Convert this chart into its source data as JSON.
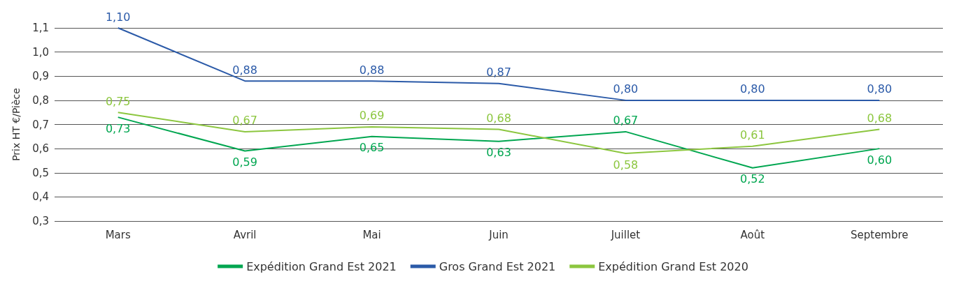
{
  "chart_data": {
    "type": "line",
    "ylabel": "Prix HT €/Pièce",
    "categories": [
      "Mars",
      "Avril",
      "Mai",
      "Juin",
      "Juillet",
      "Août",
      "Septembre"
    ],
    "series": [
      {
        "name": "Expédition Grand Est 2021",
        "color": "#00a650",
        "values": [
          0.73,
          0.59,
          0.65,
          0.63,
          0.67,
          0.52,
          0.6
        ],
        "value_labels": [
          "0,73",
          "0,59",
          "0,65",
          "0,63",
          "0,67",
          "0,52",
          "0,60"
        ]
      },
      {
        "name": "Gros Grand Est 2021",
        "color": "#2b5aa8",
        "values": [
          1.1,
          0.88,
          0.88,
          0.87,
          0.8,
          0.8,
          0.8
        ],
        "value_labels": [
          "1,10",
          "0,88",
          "0,88",
          "0,87",
          "0,80",
          "0,80",
          "0,80"
        ]
      },
      {
        "name": "Expédition Grand Est 2020",
        "color": "#8cc63f",
        "values": [
          0.75,
          0.67,
          0.69,
          0.68,
          0.58,
          0.61,
          0.68
        ],
        "value_labels": [
          "0,75",
          "0,67",
          "0,69",
          "0,68",
          "0,58",
          "0,61",
          "0,68"
        ]
      }
    ],
    "ylim": [
      0.3,
      1.1
    ],
    "yticks": [
      {
        "value": 0.3,
        "label": "0,3"
      },
      {
        "value": 0.4,
        "label": "0,4"
      },
      {
        "value": 0.5,
        "label": "0,5"
      },
      {
        "value": 0.6,
        "label": "0,6"
      },
      {
        "value": 0.7,
        "label": "0,7"
      },
      {
        "value": 0.8,
        "label": "0,8"
      },
      {
        "value": 0.9,
        "label": "0,9"
      },
      {
        "value": 1.0,
        "label": "1,0"
      },
      {
        "value": 1.1,
        "label": "1,1"
      }
    ],
    "grid": "y",
    "legend": "bottom",
    "marker": "none",
    "line_style": "solid"
  }
}
